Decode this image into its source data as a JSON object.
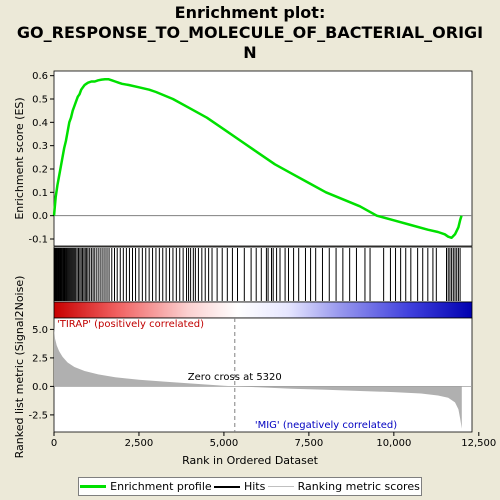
{
  "title_lines": [
    "Enrichment plot:",
    "GO_RESPONSE_TO_MOLECULE_OF_BACTERIAL_ORIGI",
    "N"
  ],
  "chart_data": {
    "type": "line",
    "x_max_ranked": 12000,
    "es_axis": {
      "label": "Enrichment score (ES)",
      "ylim": [
        -0.13,
        0.62
      ],
      "ticks": [
        "0.6",
        "0.5",
        "0.4",
        "0.3",
        "0.2",
        "0.1",
        "0.0",
        "-0.1"
      ],
      "tick_values": [
        0.6,
        0.5,
        0.4,
        0.3,
        0.2,
        0.1,
        0.0,
        -0.1
      ]
    },
    "metric_axis": {
      "label": "Ranked list metric (Signal2Noise)",
      "ylim": [
        -4.0,
        6.0
      ],
      "ticks": [
        "5.0",
        "2.5",
        "0.0",
        "-2.5"
      ],
      "tick_values": [
        5.0,
        2.5,
        0.0,
        -2.5
      ]
    },
    "x_axis": {
      "label": "Rank in Ordered Dataset",
      "xlim": [
        0,
        12300
      ],
      "ticks": [
        "0",
        "2,500",
        "5,000",
        "7,500",
        "10,000",
        "12,500"
      ],
      "tick_values": [
        0,
        2500,
        5000,
        7500,
        10000,
        12500
      ]
    },
    "series": [
      {
        "name": "Enrichment profile",
        "color": "#00e000",
        "x": [
          0,
          50,
          100,
          150,
          200,
          250,
          300,
          350,
          400,
          450,
          500,
          550,
          600,
          650,
          700,
          750,
          800,
          850,
          900,
          950,
          1000,
          1100,
          1200,
          1300,
          1400,
          1500,
          1600,
          1700,
          1800,
          1900,
          2000,
          2200,
          2500,
          2800,
          3000,
          3500,
          4000,
          4500,
          5000,
          5500,
          6000,
          6500,
          7000,
          7500,
          8000,
          8500,
          9000,
          9500,
          10000,
          10500,
          11000,
          11300,
          11500,
          11600,
          11700,
          11800,
          11900,
          11950,
          11990
        ],
        "y": [
          0.0,
          0.08,
          0.13,
          0.17,
          0.21,
          0.25,
          0.29,
          0.32,
          0.36,
          0.4,
          0.42,
          0.45,
          0.47,
          0.49,
          0.51,
          0.52,
          0.54,
          0.55,
          0.56,
          0.565,
          0.57,
          0.575,
          0.575,
          0.58,
          0.583,
          0.585,
          0.585,
          0.58,
          0.575,
          0.57,
          0.565,
          0.56,
          0.55,
          0.54,
          0.53,
          0.5,
          0.46,
          0.42,
          0.37,
          0.32,
          0.27,
          0.22,
          0.18,
          0.14,
          0.1,
          0.07,
          0.04,
          0.0,
          -0.02,
          -0.04,
          -0.06,
          -0.07,
          -0.08,
          -0.09,
          -0.095,
          -0.08,
          -0.05,
          -0.02,
          0.0
        ]
      },
      {
        "name": "Ranking metric scores",
        "color": "#b0b0b0",
        "x": [
          0,
          30,
          80,
          150,
          250,
          400,
          600,
          900,
          1300,
          1800,
          2500,
          3300,
          4200,
          5000,
          5320,
          6000,
          7000,
          8000,
          9000,
          10000,
          10800,
          11300,
          11600,
          11800,
          11900,
          11950,
          12000
        ],
        "y": [
          5.2,
          4.2,
          3.6,
          3.1,
          2.6,
          2.1,
          1.7,
          1.35,
          1.05,
          0.8,
          0.58,
          0.4,
          0.22,
          0.06,
          0.0,
          -0.08,
          -0.2,
          -0.3,
          -0.4,
          -0.5,
          -0.62,
          -0.8,
          -1.0,
          -1.4,
          -2.0,
          -2.8,
          -3.7
        ]
      }
    ],
    "hits": [
      10,
      25,
      40,
      55,
      70,
      85,
      100,
      120,
      140,
      160,
      180,
      200,
      220,
      245,
      270,
      295,
      320,
      345,
      370,
      400,
      430,
      460,
      490,
      520,
      550,
      580,
      610,
      640,
      680,
      720,
      760,
      800,
      840,
      880,
      920,
      960,
      1000,
      1050,
      1100,
      1150,
      1200,
      1260,
      1320,
      1380,
      1440,
      1500,
      1560,
      1620,
      1700,
      1780,
      1860,
      1950,
      2040,
      2130,
      2220,
      2310,
      2400,
      2500,
      2600,
      2700,
      2800,
      2900,
      3000,
      3100,
      3200,
      3300,
      3400,
      3500,
      3600,
      3700,
      3800,
      3900,
      3960,
      4020,
      4100,
      4160,
      4250,
      4350,
      4450,
      4550,
      4650,
      4800,
      4950,
      5100,
      5250,
      5400,
      5600,
      5800,
      5950,
      6100,
      6250,
      6300,
      6400,
      6450,
      6550,
      6650,
      6800,
      6900,
      7050,
      7200,
      7400,
      7550,
      7700,
      7900,
      8100,
      8300,
      8500,
      8700,
      8900,
      9150,
      9300,
      9700,
      9900,
      10050,
      10200,
      10350,
      10500,
      10700,
      10850,
      11000,
      11150,
      11250,
      11550,
      11600,
      11650,
      11700,
      11750,
      11800,
      11850,
      11900,
      11950
    ],
    "labels": {
      "positive": "'TIRAP' (positively correlated)",
      "negative": "'MIG' (negatively correlated)",
      "zero_cross": "Zero cross at 5320",
      "zero_cross_x": 5320
    },
    "heat_colors": {
      "positive": "#e01010",
      "neutral": "#ffffff",
      "negative": "#1010e0"
    },
    "legend": {
      "items": [
        "Enrichment profile",
        "Hits",
        "Ranking metric scores"
      ],
      "colors": [
        "#00e000",
        "#000000",
        "#c0c0c0"
      ]
    }
  }
}
